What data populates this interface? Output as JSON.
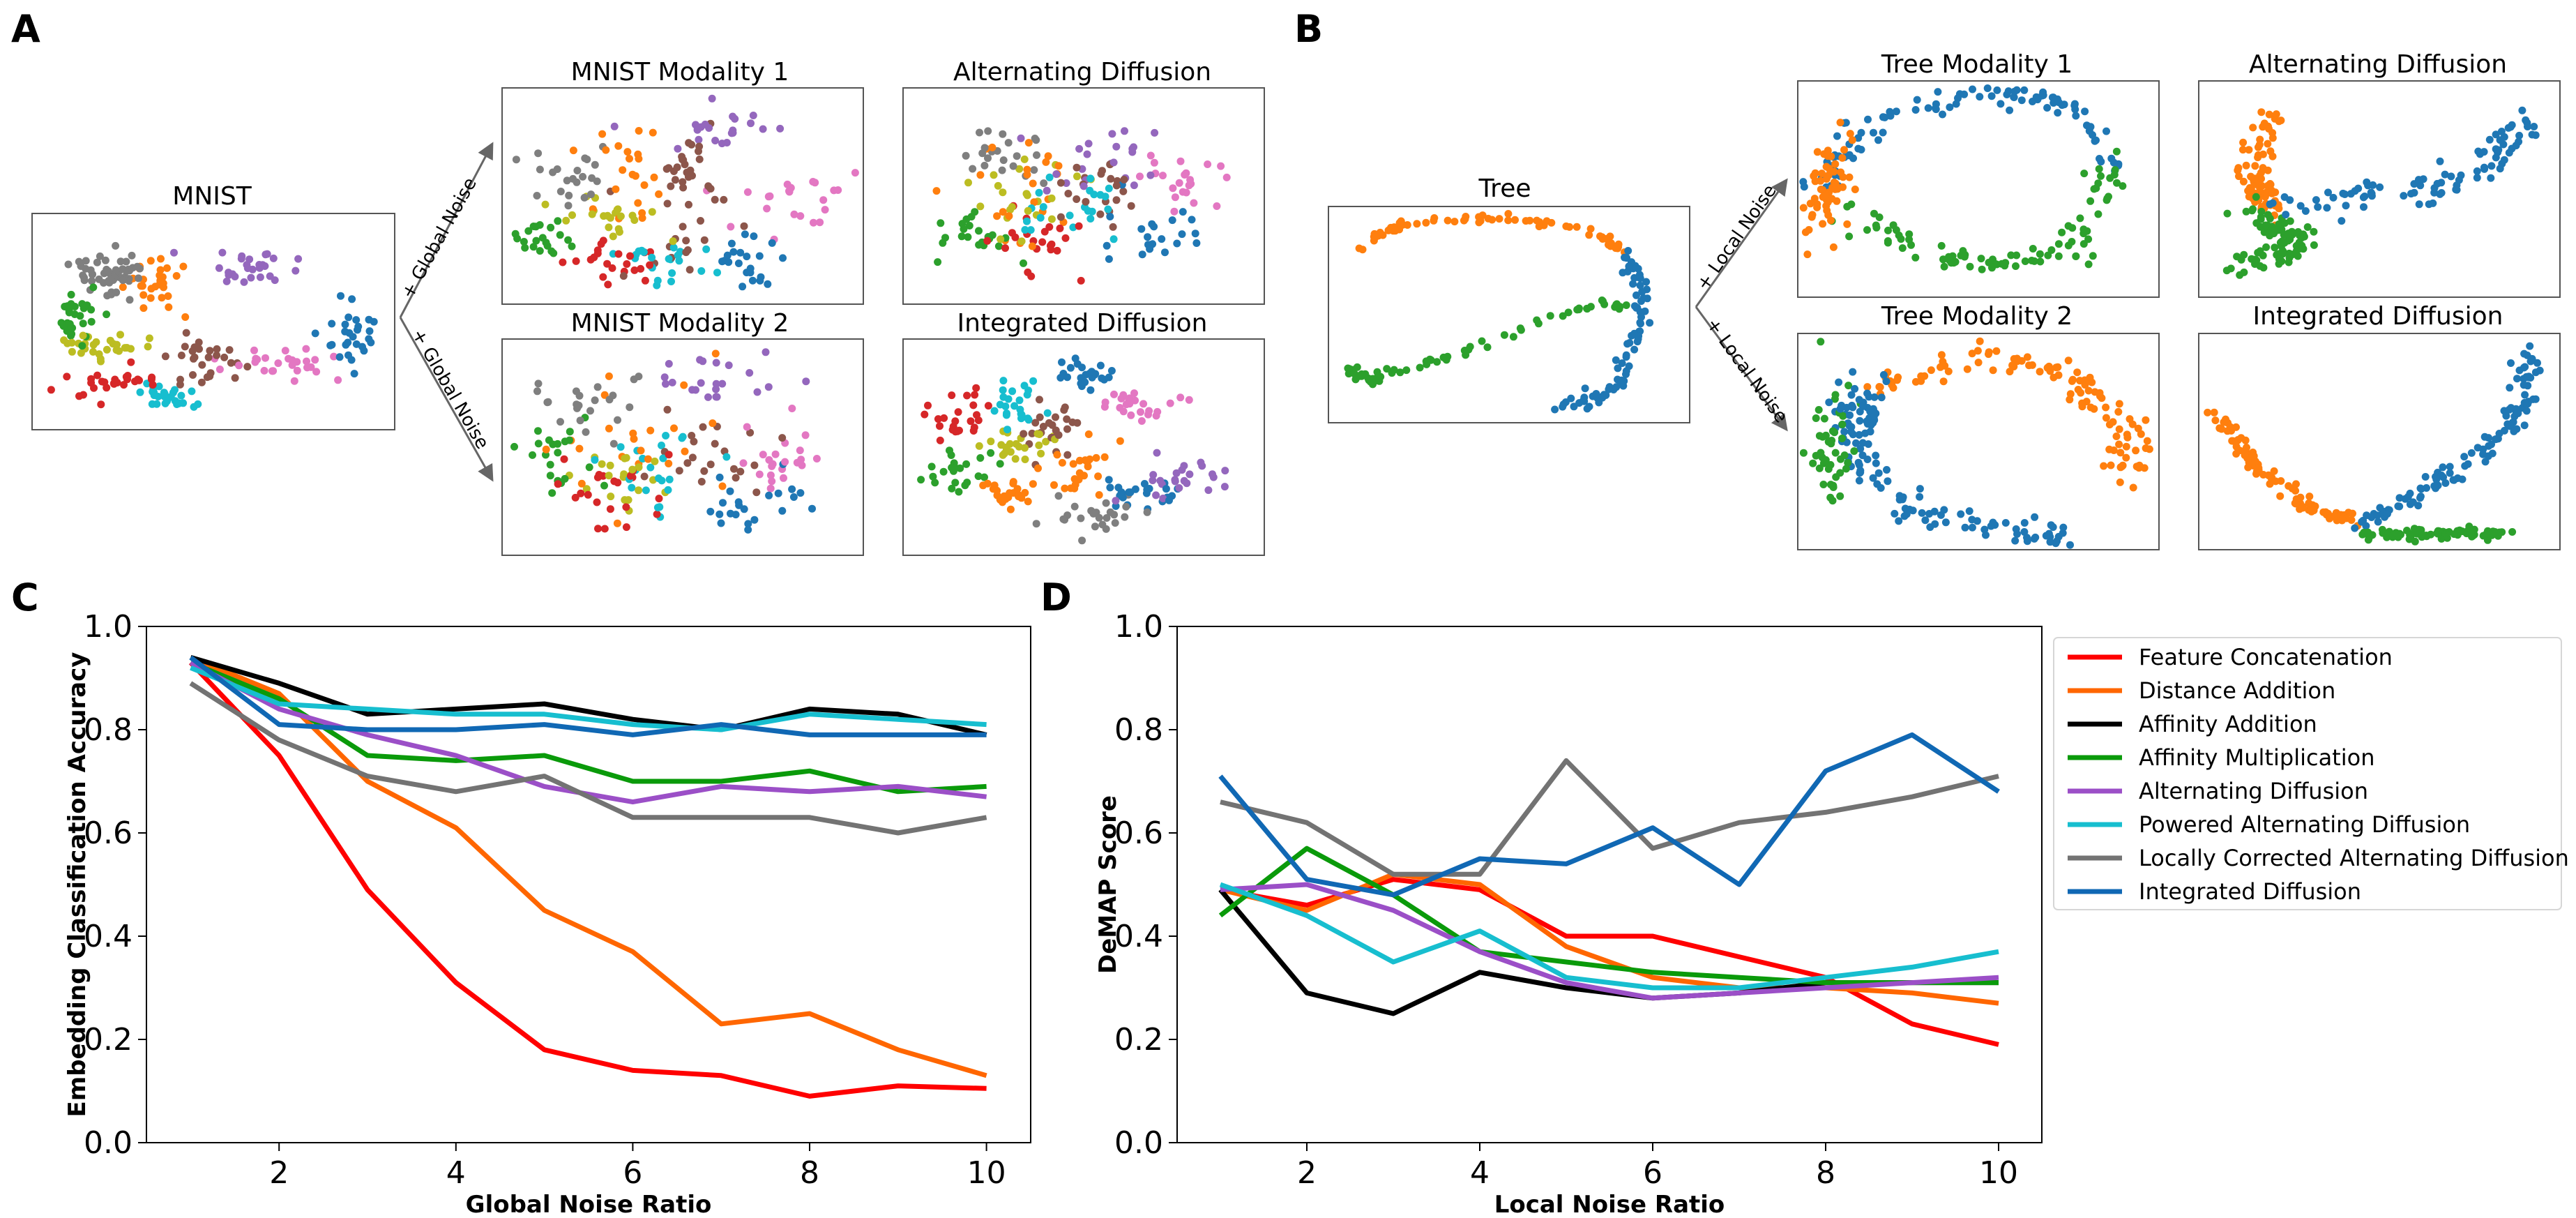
{
  "panels": {
    "A": {
      "letter": "A",
      "source_title": "MNIST",
      "arrow_label": "+ Global Noise",
      "titles": [
        "MNIST Modality 1",
        "Alternating Diffusion",
        "MNIST Modality 2",
        "Integrated Diffusion"
      ]
    },
    "B": {
      "letter": "B",
      "source_title": "Tree",
      "arrow_label": "+ Local Noise",
      "titles": [
        "Tree Modality 1",
        "Alternating Diffusion",
        "Tree Modality 2",
        "Integrated Diffusion"
      ]
    },
    "C": {
      "letter": "C"
    },
    "D": {
      "letter": "D"
    }
  },
  "colors": {
    "Feature Concatenation": "#ff0000",
    "Distance Addition": "#ff6600",
    "Affinity Addition": "#000000",
    "Affinity Multiplication": "#0a9a0a",
    "Alternating Diffusion": "#9b4fc7",
    "Powered Alternating Diffusion": "#17becf",
    "Locally Corrected Alternating Diffusion": "#737373",
    "Integrated Diffusion": "#1068b4"
  },
  "legend": [
    "Feature Concatenation",
    "Distance Addition",
    "Affinity Addition",
    "Affinity Multiplication",
    "Alternating Diffusion",
    "Powered Alternating Diffusion",
    "Locally Corrected Alternating Diffusion",
    "Integrated Diffusion"
  ],
  "chart_data": [
    {
      "type": "line",
      "xlabel": "Global Noise Ratio",
      "ylabel": "Embedding Classification Accuracy",
      "xlim": [
        0.5,
        10.5
      ],
      "ylim": [
        0.0,
        1.0
      ],
      "xticks": [
        2,
        4,
        6,
        8,
        10
      ],
      "yticks": [
        0.0,
        0.2,
        0.4,
        0.6,
        0.8,
        1.0
      ],
      "x": [
        1,
        2,
        3,
        4,
        5,
        6,
        7,
        8,
        9,
        10
      ],
      "series": [
        {
          "name": "Feature Concatenation",
          "values": [
            0.93,
            0.75,
            0.49,
            0.31,
            0.18,
            0.14,
            0.13,
            0.09,
            0.11,
            0.105
          ]
        },
        {
          "name": "Distance Addition",
          "values": [
            0.94,
            0.87,
            0.7,
            0.61,
            0.45,
            0.37,
            0.23,
            0.25,
            0.18,
            0.13
          ]
        },
        {
          "name": "Affinity Addition",
          "values": [
            0.94,
            0.89,
            0.83,
            0.84,
            0.85,
            0.82,
            0.8,
            0.84,
            0.83,
            0.79
          ]
        },
        {
          "name": "Affinity Multiplication",
          "values": [
            0.93,
            0.86,
            0.75,
            0.74,
            0.75,
            0.7,
            0.7,
            0.72,
            0.68,
            0.69
          ]
        },
        {
          "name": "Alternating Diffusion",
          "values": [
            0.93,
            0.84,
            0.79,
            0.75,
            0.69,
            0.66,
            0.69,
            0.68,
            0.69,
            0.67
          ]
        },
        {
          "name": "Powered Alternating Diffusion",
          "values": [
            0.92,
            0.85,
            0.84,
            0.83,
            0.83,
            0.81,
            0.8,
            0.83,
            0.82,
            0.81
          ]
        },
        {
          "name": "Locally Corrected Alternating Diffusion",
          "values": [
            0.89,
            0.78,
            0.71,
            0.68,
            0.71,
            0.63,
            0.63,
            0.63,
            0.6,
            0.63
          ]
        },
        {
          "name": "Integrated Diffusion",
          "values": [
            0.94,
            0.81,
            0.8,
            0.8,
            0.81,
            0.79,
            0.81,
            0.79,
            0.79,
            0.79
          ]
        }
      ]
    },
    {
      "type": "line",
      "xlabel": "Local Noise Ratio",
      "ylabel": "DeMAP Score",
      "xlim": [
        0.5,
        10.5
      ],
      "ylim": [
        0.0,
        1.0
      ],
      "xticks": [
        2,
        4,
        6,
        8,
        10
      ],
      "yticks": [
        0.0,
        0.2,
        0.4,
        0.6,
        0.8,
        1.0
      ],
      "x": [
        1,
        2,
        3,
        4,
        5,
        6,
        7,
        8,
        9,
        10
      ],
      "series": [
        {
          "name": "Feature Concatenation",
          "values": [
            0.49,
            0.46,
            0.51,
            0.49,
            0.4,
            0.4,
            0.36,
            0.32,
            0.23,
            0.19
          ]
        },
        {
          "name": "Distance Addition",
          "values": [
            0.49,
            0.45,
            0.52,
            0.5,
            0.38,
            0.32,
            0.3,
            0.3,
            0.29,
            0.27
          ]
        },
        {
          "name": "Affinity Addition",
          "values": [
            0.49,
            0.29,
            0.25,
            0.33,
            0.3,
            0.28,
            0.29,
            0.31,
            0.31,
            0.31
          ]
        },
        {
          "name": "Affinity Multiplication",
          "values": [
            0.44,
            0.57,
            0.48,
            0.37,
            0.35,
            0.33,
            0.32,
            0.31,
            0.31,
            0.31
          ]
        },
        {
          "name": "Alternating Diffusion",
          "values": [
            0.49,
            0.5,
            0.45,
            0.37,
            0.31,
            0.28,
            0.29,
            0.3,
            0.31,
            0.32
          ]
        },
        {
          "name": "Powered Alternating Diffusion",
          "values": [
            0.5,
            0.44,
            0.35,
            0.41,
            0.32,
            0.3,
            0.3,
            0.32,
            0.34,
            0.37
          ]
        },
        {
          "name": "Locally Corrected Alternating Diffusion",
          "values": [
            0.66,
            0.62,
            0.52,
            0.52,
            0.74,
            0.57,
            0.62,
            0.64,
            0.67,
            0.71
          ]
        },
        {
          "name": "Integrated Diffusion",
          "values": [
            0.71,
            0.51,
            0.48,
            0.55,
            0.54,
            0.61,
            0.5,
            0.72,
            0.79,
            0.68
          ]
        }
      ]
    }
  ]
}
